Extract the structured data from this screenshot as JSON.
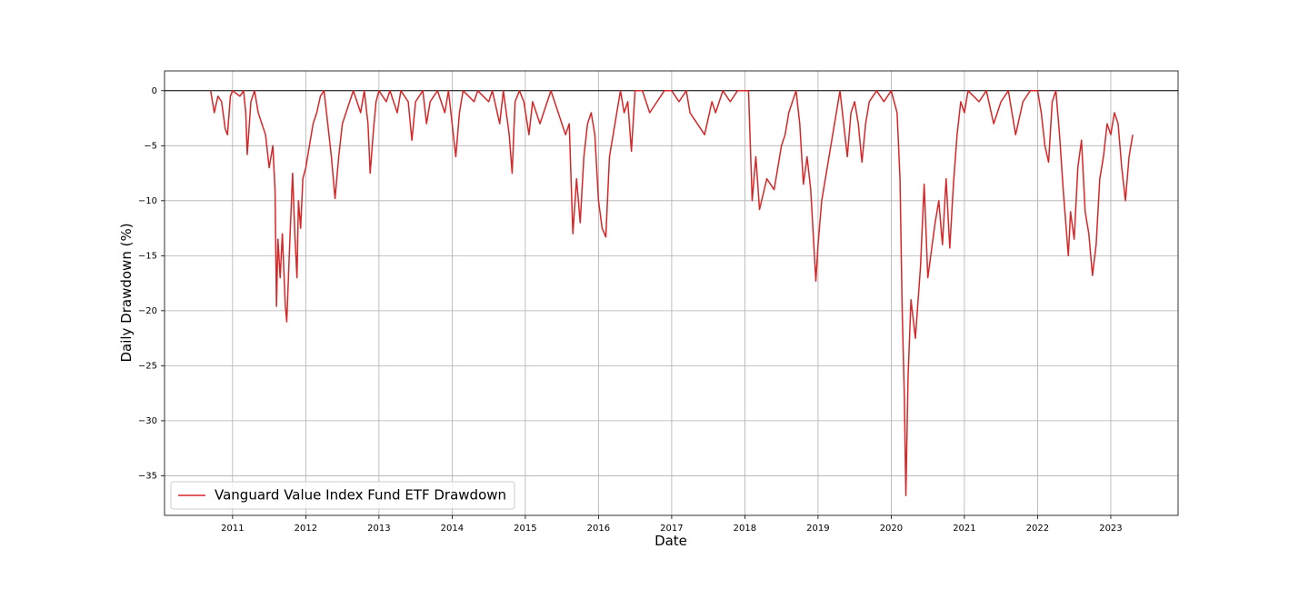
{
  "chart_data": {
    "type": "line",
    "xlabel": "Date",
    "ylabel": "Daily Drawdown (%)",
    "x": [
      2010.7,
      2010.75,
      2010.8,
      2010.85,
      2010.9,
      2010.93,
      2010.97,
      2011.0,
      2011.1,
      2011.15,
      2011.18,
      2011.2,
      2011.25,
      2011.3,
      2011.35,
      2011.4,
      2011.45,
      2011.5,
      2011.55,
      2011.58,
      2011.6,
      2011.62,
      2011.65,
      2011.68,
      2011.72,
      2011.74,
      2011.78,
      2011.82,
      2011.85,
      2011.88,
      2011.9,
      2011.93,
      2011.96,
      2012.0,
      2012.05,
      2012.1,
      2012.15,
      2012.2,
      2012.25,
      2012.3,
      2012.35,
      2012.4,
      2012.45,
      2012.5,
      2012.55,
      2012.6,
      2012.65,
      2012.7,
      2012.75,
      2012.8,
      2012.85,
      2012.88,
      2012.92,
      2012.96,
      2013.0,
      2013.1,
      2013.15,
      2013.25,
      2013.3,
      2013.4,
      2013.45,
      2013.5,
      2013.6,
      2013.65,
      2013.7,
      2013.8,
      2013.9,
      2013.95,
      2014.05,
      2014.1,
      2014.15,
      2014.3,
      2014.35,
      2014.5,
      2014.55,
      2014.65,
      2014.7,
      2014.78,
      2014.82,
      2014.86,
      2014.92,
      2014.98,
      2015.05,
      2015.1,
      2015.2,
      2015.3,
      2015.35,
      2015.45,
      2015.5,
      2015.55,
      2015.6,
      2015.65,
      2015.7,
      2015.75,
      2015.8,
      2015.85,
      2015.9,
      2015.95,
      2016.0,
      2016.05,
      2016.1,
      2016.15,
      2016.2,
      2016.25,
      2016.3,
      2016.35,
      2016.4,
      2016.45,
      2016.5,
      2016.6,
      2016.7,
      2016.8,
      2016.9,
      2017.0,
      2017.1,
      2017.2,
      2017.25,
      2017.35,
      2017.45,
      2017.55,
      2017.6,
      2017.7,
      2017.8,
      2017.9,
      2018.05,
      2018.1,
      2018.15,
      2018.2,
      2018.3,
      2018.4,
      2018.5,
      2018.55,
      2018.6,
      2018.7,
      2018.75,
      2018.8,
      2018.85,
      2018.9,
      2018.97,
      2019.0,
      2019.05,
      2019.1,
      2019.2,
      2019.25,
      2019.3,
      2019.35,
      2019.4,
      2019.45,
      2019.5,
      2019.55,
      2019.6,
      2019.65,
      2019.7,
      2019.8,
      2019.9,
      2020.0,
      2020.08,
      2020.12,
      2020.15,
      2020.18,
      2020.2,
      2020.23,
      2020.27,
      2020.33,
      2020.4,
      2020.45,
      2020.5,
      2020.6,
      2020.65,
      2020.7,
      2020.75,
      2020.8,
      2020.85,
      2020.9,
      2020.95,
      2021.0,
      2021.05,
      2021.2,
      2021.3,
      2021.4,
      2021.5,
      2021.6,
      2021.7,
      2021.8,
      2021.9,
      2022.0,
      2022.05,
      2022.1,
      2022.15,
      2022.2,
      2022.25,
      2022.3,
      2022.35,
      2022.42,
      2022.45,
      2022.5,
      2022.55,
      2022.6,
      2022.65,
      2022.7,
      2022.75,
      2022.8,
      2022.85,
      2022.9,
      2022.95,
      2023.0,
      2023.05,
      2023.1,
      2023.15,
      2023.2,
      2023.25,
      2023.3
    ],
    "series": [
      {
        "name": "Vanguard Value Index Fund ETF Drawdown",
        "color": "#d62728",
        "values": [
          0,
          -2,
          -0.5,
          -1,
          -3.5,
          -4,
          -0.5,
          0,
          -0.5,
          0,
          -2,
          -5.8,
          -1,
          0,
          -2,
          -3,
          -4,
          -7,
          -5,
          -9,
          -19.6,
          -13.5,
          -17,
          -13,
          -19.5,
          -21,
          -14,
          -7.5,
          -13,
          -17,
          -10,
          -12.5,
          -8,
          -7,
          -5,
          -3,
          -2,
          -0.5,
          0,
          -3,
          -6,
          -9.8,
          -6,
          -3,
          -2,
          -1,
          0,
          -1,
          -2,
          0,
          -3,
          -7.5,
          -4,
          -1,
          0,
          -1,
          0,
          -2,
          0,
          -1,
          -4.5,
          -1,
          0,
          -3,
          -1,
          0,
          -2,
          0,
          -6,
          -2,
          0,
          -1,
          0,
          -1,
          0,
          -3,
          0,
          -4,
          -7.5,
          -1,
          0,
          -1,
          -4,
          -1,
          -3,
          -1,
          0,
          -2,
          -3,
          -4,
          -3,
          -13,
          -8,
          -12,
          -6,
          -3,
          -2,
          -4,
          -10,
          -12.5,
          -13.3,
          -6,
          -4,
          -2,
          0,
          -2,
          -1,
          -5.5,
          0,
          0,
          -2,
          -1,
          0,
          0,
          -1,
          0,
          -2,
          -3,
          -4,
          -1,
          -2,
          0,
          -1,
          0,
          0,
          -10,
          -6,
          -10.8,
          -8,
          -9,
          -5,
          -4,
          -2,
          0,
          -3,
          -8.5,
          -6,
          -9,
          -17.3,
          -14,
          -10,
          -8,
          -4,
          -2,
          0,
          -3,
          -6,
          -2,
          -1,
          -3,
          -6.5,
          -3,
          -1,
          0,
          -1,
          0,
          -2,
          -8,
          -20,
          -28,
          -36.8,
          -26,
          -19,
          -22.5,
          -16,
          -8.5,
          -17,
          -12,
          -10,
          -14,
          -8,
          -14.3,
          -8.5,
          -4,
          -1,
          -2,
          0,
          -1,
          0,
          -3,
          -1,
          0,
          -4,
          -1,
          0,
          0,
          -2,
          -5,
          -6.5,
          -1,
          0,
          -4,
          -9,
          -15,
          -11,
          -13.5,
          -7,
          -4.5,
          -11,
          -13,
          -16.8,
          -14,
          -8,
          -6,
          -3,
          -4,
          -2,
          -3,
          -7,
          -10,
          -6,
          -4
        ]
      }
    ],
    "xlim": [
      2010.07,
      2023.92
    ],
    "xticks": [
      2011,
      2012,
      2013,
      2014,
      2015,
      2016,
      2017,
      2018,
      2019,
      2020,
      2021,
      2022,
      2023
    ],
    "ylim": [
      -38.6,
      1.8
    ],
    "yticks": [
      0,
      {
        "value": -5,
        "label": "−5"
      },
      {
        "value": -10,
        "label": "−10"
      },
      {
        "value": -15,
        "label": "−15"
      },
      {
        "value": -20,
        "label": "−20"
      },
      {
        "value": -25,
        "label": "−25"
      },
      {
        "value": -30,
        "label": "−30"
      },
      {
        "value": -35,
        "label": "−35"
      }
    ],
    "hline": 0,
    "grid": true,
    "legend": "lower left"
  }
}
